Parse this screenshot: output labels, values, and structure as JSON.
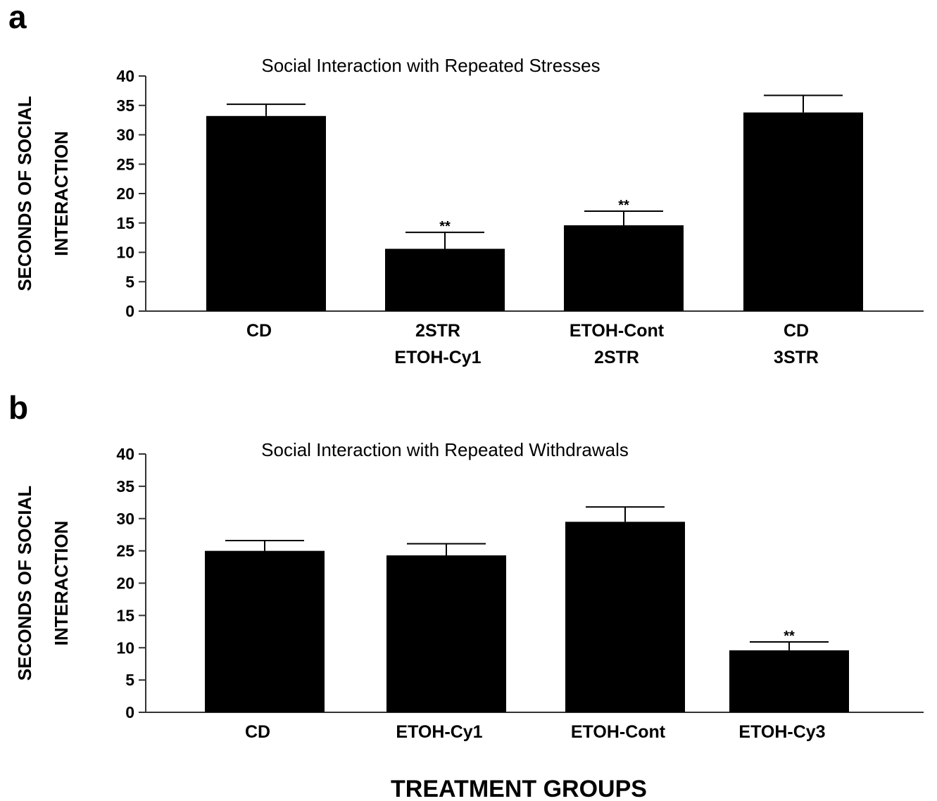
{
  "chart_data": [
    {
      "panel": "a",
      "type": "bar",
      "title": "Social Interaction with Repeated Stresses",
      "ylabel": [
        "SECONDS OF SOCIAL",
        "INTERACTION"
      ],
      "xlabel": "",
      "ylim": [
        0,
        40
      ],
      "yticks": [
        0,
        5,
        10,
        15,
        20,
        25,
        30,
        35,
        40
      ],
      "grid": false,
      "categories": [
        [
          "CD"
        ],
        [
          "2STR",
          "ETOH-Cy1"
        ],
        [
          "ETOH-Cont",
          "2STR"
        ],
        [
          "CD",
          "3STR"
        ]
      ],
      "values": [
        33.2,
        10.6,
        14.6,
        33.8
      ],
      "error": [
        2.0,
        2.8,
        2.4,
        2.9
      ],
      "annotations": [
        "",
        "**",
        "**",
        ""
      ]
    },
    {
      "panel": "b",
      "type": "bar",
      "title": "Social Interaction with Repeated Withdrawals",
      "ylabel": [
        "SECONDS OF SOCIAL",
        "INTERACTION"
      ],
      "xlabel": "TREATMENT GROUPS",
      "ylim": [
        0,
        40
      ],
      "yticks": [
        0,
        5,
        10,
        15,
        20,
        25,
        30,
        35,
        40
      ],
      "grid": false,
      "categories": [
        [
          "CD"
        ],
        [
          "ETOH-Cy1"
        ],
        [
          "ETOH-Cont"
        ],
        [
          "ETOH-Cy3"
        ]
      ],
      "values": [
        25.0,
        24.3,
        29.5,
        9.6
      ],
      "error": [
        1.6,
        1.8,
        2.3,
        1.3
      ],
      "annotations": [
        "",
        "",
        "",
        "**"
      ]
    }
  ]
}
